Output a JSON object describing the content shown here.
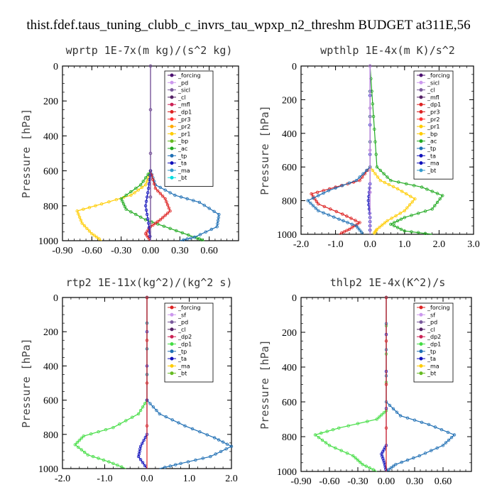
{
  "figure": {
    "title": "thist.fdef.taus_tuning_clubb_c_invrs_tau_wpxp_n2_threshm  BUDGET at311E,56"
  },
  "chart_data": [
    {
      "type": "line",
      "title": "wprtp  1E-7x(m kg)/(s^2 kg)",
      "ylabel": "Pressure [hPa]",
      "xlim": [
        -0.9,
        0.9
      ],
      "ylim": [
        1000,
        0
      ],
      "x_ticks": [
        "-0.90",
        "-0.60",
        "-0.30",
        "0.00",
        "0.30",
        "0.60"
      ],
      "x_tick_values": [
        -0.9,
        -0.6,
        -0.3,
        0.0,
        0.3,
        0.6
      ],
      "y_ticks": [
        "0",
        "200",
        "400",
        "600",
        "800",
        "1000"
      ],
      "y_tick_values": [
        0,
        200,
        400,
        600,
        800,
        1000
      ],
      "legend": [
        "_forcing",
        "_pd",
        "_sicl",
        "_cl",
        "_mfl",
        "_dp1",
        "_pr3",
        "_pr2",
        "_pr1",
        "_bp",
        "_ac",
        "_tp",
        "_ta",
        "_ma",
        "_bt"
      ],
      "legend_position": "top-right",
      "series": [
        {
          "name": "_pr1",
          "color": "#ffcc00",
          "points": [
            [
              0.0,
              600
            ],
            [
              -0.05,
              680
            ],
            [
              -0.2,
              740
            ],
            [
              -0.5,
              790
            ],
            [
              -0.75,
              830
            ],
            [
              -0.7,
              900
            ],
            [
              -0.6,
              960
            ],
            [
              -0.5,
              1000
            ]
          ]
        },
        {
          "name": "_ac",
          "color": "#22aa22",
          "points": [
            [
              0.0,
              600
            ],
            [
              -0.1,
              680
            ],
            [
              -0.3,
              760
            ],
            [
              -0.25,
              820
            ],
            [
              -0.05,
              880
            ],
            [
              0.2,
              930
            ],
            [
              0.45,
              980
            ],
            [
              0.55,
              1000
            ]
          ]
        },
        {
          "name": "_tp",
          "color": "#1f6fb4",
          "points": [
            [
              0.0,
              600
            ],
            [
              0.05,
              680
            ],
            [
              0.25,
              740
            ],
            [
              0.5,
              780
            ],
            [
              0.7,
              850
            ],
            [
              0.68,
              920
            ],
            [
              0.45,
              980
            ],
            [
              0.3,
              1000
            ]
          ]
        },
        {
          "name": "_dp1",
          "color": "#dd2222",
          "points": [
            [
              0.0,
              600
            ],
            [
              0.05,
              700
            ],
            [
              0.15,
              760
            ],
            [
              0.2,
              830
            ],
            [
              0.1,
              880
            ],
            [
              0.0,
              920
            ],
            [
              -0.05,
              960
            ],
            [
              0.0,
              1000
            ]
          ]
        },
        {
          "name": "_ta",
          "color": "#1111bb",
          "points": [
            [
              0.0,
              600
            ],
            [
              -0.02,
              700
            ],
            [
              -0.05,
              800
            ],
            [
              -0.02,
              900
            ],
            [
              0.0,
              1000
            ]
          ]
        },
        {
          "name": "_forcing",
          "color": "#4b1070",
          "points": [
            [
              0.0,
              0
            ],
            [
              0.0,
              1000
            ]
          ]
        },
        {
          "name": "_sicl",
          "color": "#7a5a9c",
          "points": [
            [
              0.0,
              0
            ],
            [
              0.0,
              1000
            ]
          ]
        }
      ]
    },
    {
      "type": "line",
      "title": "wpthlp  1E-4x(m K)/s^2",
      "ylabel": "Pressure [hPa]",
      "xlim": [
        -2.0,
        3.0
      ],
      "ylim": [
        1000,
        0
      ],
      "x_ticks": [
        "-2.0",
        "-1.0",
        "0.0",
        "1.0",
        "2.0",
        "3.0"
      ],
      "x_tick_values": [
        -2.0,
        -1.0,
        0.0,
        1.0,
        2.0,
        3.0
      ],
      "y_ticks": [
        "0",
        "200",
        "400",
        "600",
        "800",
        "1000"
      ],
      "y_tick_values": [
        0,
        200,
        400,
        600,
        800,
        1000
      ],
      "legend": [
        "_forcing",
        "_sicl",
        "_cl",
        "_mfl",
        "_dp1",
        "_pr3",
        "_pr2",
        "_pr1",
        "_bp",
        "_ac",
        "_tp",
        "_ta",
        "_ma",
        "_bt"
      ],
      "legend_position": "top-right",
      "series": [
        {
          "name": "_ac",
          "color": "#22aa22",
          "points": [
            [
              0.0,
              0
            ],
            [
              0.1,
              300
            ],
            [
              0.2,
              600
            ],
            [
              0.6,
              680
            ],
            [
              1.5,
              720
            ],
            [
              2.1,
              770
            ],
            [
              1.8,
              850
            ],
            [
              1.0,
              900
            ],
            [
              0.6,
              940
            ],
            [
              1.0,
              980
            ],
            [
              1.8,
              1000
            ]
          ]
        },
        {
          "name": "_pr1",
          "color": "#ffcc00",
          "points": [
            [
              0.0,
              0
            ],
            [
              0.0,
              600
            ],
            [
              0.3,
              680
            ],
            [
              0.8,
              730
            ],
            [
              1.3,
              790
            ],
            [
              1.0,
              860
            ],
            [
              0.5,
              920
            ],
            [
              0.2,
              970
            ],
            [
              0.1,
              1000
            ]
          ]
        },
        {
          "name": "_dp1",
          "color": "#dd2222",
          "points": [
            [
              0.0,
              0
            ],
            [
              0.0,
              600
            ],
            [
              -0.3,
              680
            ],
            [
              -1.0,
              720
            ],
            [
              -1.7,
              760
            ],
            [
              -1.5,
              820
            ],
            [
              -0.8,
              880
            ],
            [
              -0.3,
              930
            ],
            [
              -0.6,
              970
            ],
            [
              -0.9,
              1000
            ]
          ]
        },
        {
          "name": "_tp",
          "color": "#1f6fb4",
          "points": [
            [
              0.0,
              0
            ],
            [
              0.0,
              600
            ],
            [
              -0.4,
              680
            ],
            [
              -1.2,
              740
            ],
            [
              -1.8,
              800
            ],
            [
              -1.5,
              860
            ],
            [
              -0.9,
              910
            ],
            [
              -0.4,
              950
            ],
            [
              -0.2,
              1000
            ]
          ]
        },
        {
          "name": "_ta",
          "color": "#1111bb",
          "points": [
            [
              0.0,
              0
            ],
            [
              0.0,
              700
            ],
            [
              -0.05,
              800
            ],
            [
              0.0,
              900
            ],
            [
              0.0,
              1000
            ]
          ]
        },
        {
          "name": "_forcing",
          "color": "#4b1070",
          "points": [
            [
              0.0,
              0
            ],
            [
              0.0,
              1000
            ]
          ]
        },
        {
          "name": "_sicl",
          "color": "#cc99ee",
          "points": [
            [
              0.0,
              0
            ],
            [
              0.0,
              1000
            ]
          ]
        }
      ]
    },
    {
      "type": "line",
      "title": "rtp2  1E-11x(kg^2)/(kg^2 s)",
      "ylabel": "Pressure [hPa]",
      "xlim": [
        -2.0,
        2.0
      ],
      "ylim": [
        1000,
        0
      ],
      "x_ticks": [
        "-2.0",
        "-1.0",
        "0.0",
        "1.0",
        "2.0"
      ],
      "x_tick_values": [
        -2.0,
        -1.0,
        0.0,
        1.0,
        2.0
      ],
      "y_ticks": [
        "0",
        "200",
        "400",
        "600",
        "800",
        "1000"
      ],
      "y_tick_values": [
        0,
        200,
        400,
        600,
        800,
        1000
      ],
      "legend": [
        "_forcing",
        "_sf",
        "_pd",
        "_cl",
        "_dp2",
        "_dp1",
        "_tp",
        "_ta",
        "_ma",
        "_bt"
      ],
      "legend_position": "top-right",
      "series": [
        {
          "name": "_dp1",
          "color": "#44dd44",
          "points": [
            [
              0.0,
              0
            ],
            [
              0.0,
              600
            ],
            [
              -0.2,
              680
            ],
            [
              -0.8,
              760
            ],
            [
              -1.5,
              810
            ],
            [
              -1.7,
              860
            ],
            [
              -1.4,
              920
            ],
            [
              -0.9,
              960
            ],
            [
              -0.5,
              1000
            ]
          ]
        },
        {
          "name": "_tp",
          "color": "#1f6fb4",
          "points": [
            [
              0.0,
              0
            ],
            [
              0.0,
              600
            ],
            [
              0.3,
              680
            ],
            [
              0.9,
              750
            ],
            [
              1.6,
              820
            ],
            [
              2.0,
              870
            ],
            [
              1.5,
              930
            ],
            [
              0.8,
              970
            ],
            [
              0.3,
              1000
            ]
          ]
        },
        {
          "name": "_ta",
          "color": "#1111bb",
          "points": [
            [
              0.0,
              0
            ],
            [
              0.0,
              800
            ],
            [
              -0.15,
              870
            ],
            [
              -0.2,
              930
            ],
            [
              0.0,
              1000
            ]
          ]
        },
        {
          "name": "_forcing",
          "color": "#dd2222",
          "points": [
            [
              0.0,
              0
            ],
            [
              0.0,
              1000
            ]
          ]
        }
      ]
    },
    {
      "type": "line",
      "title": "thlp2  1E-4x(K^2)/s",
      "ylabel": "Pressure [hPa]",
      "xlim": [
        -0.9,
        0.9
      ],
      "ylim": [
        1000,
        0
      ],
      "x_ticks": [
        "-0.90",
        "-0.60",
        "-0.30",
        "0.00",
        "0.30",
        "0.60"
      ],
      "x_tick_values": [
        -0.9,
        -0.6,
        -0.3,
        0.0,
        0.3,
        0.6
      ],
      "y_ticks": [
        "0",
        "200",
        "400",
        "600",
        "800",
        "1000"
      ],
      "y_tick_values": [
        0,
        200,
        400,
        600,
        800,
        1000
      ],
      "legend": [
        "_forcing",
        "_sf",
        "_pd",
        "_cl",
        "_dp2",
        "_dp1",
        "_tp",
        "_ta",
        "_ma",
        "_bt"
      ],
      "legend_position": "top-right",
      "series": [
        {
          "name": "_dp1",
          "color": "#44dd44",
          "points": [
            [
              0.0,
              0
            ],
            [
              0.0,
              650
            ],
            [
              -0.1,
              700
            ],
            [
              -0.5,
              750
            ],
            [
              -0.75,
              790
            ],
            [
              -0.6,
              850
            ],
            [
              -0.35,
              910
            ],
            [
              -0.25,
              960
            ],
            [
              -0.1,
              1000
            ]
          ]
        },
        {
          "name": "_tp",
          "color": "#1f6fb4",
          "points": [
            [
              0.0,
              0
            ],
            [
              0.0,
              600
            ],
            [
              0.15,
              680
            ],
            [
              0.45,
              730
            ],
            [
              0.72,
              790
            ],
            [
              0.6,
              850
            ],
            [
              0.35,
              910
            ],
            [
              0.1,
              960
            ],
            [
              0.0,
              1000
            ]
          ]
        },
        {
          "name": "_ta",
          "color": "#1111bb",
          "points": [
            [
              0.0,
              0
            ],
            [
              0.0,
              850
            ],
            [
              -0.05,
              900
            ],
            [
              -0.02,
              950
            ],
            [
              0.0,
              1000
            ]
          ]
        },
        {
          "name": "_forcing",
          "color": "#dd2222",
          "points": [
            [
              0.0,
              0
            ],
            [
              0.0,
              1000
            ]
          ]
        }
      ]
    }
  ]
}
